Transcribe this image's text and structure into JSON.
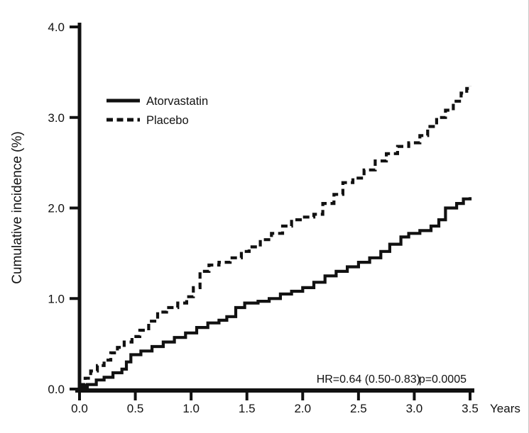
{
  "figure": {
    "background": "#ffffff"
  },
  "chart_data": {
    "type": "line",
    "subtype": "step-cumulative-incidence",
    "title": "",
    "xlabel": "Years",
    "ylabel": "Cumulative incidence (%)",
    "xlim": [
      0,
      3.5
    ],
    "ylim": [
      0,
      4.0
    ],
    "grid": false,
    "axis_color": "#111111",
    "x_ticks": [
      {
        "value": 0.0,
        "label": "0.0"
      },
      {
        "value": 0.5,
        "label": "0.5"
      },
      {
        "value": 1.0,
        "label": "1.0"
      },
      {
        "value": 1.5,
        "label": "1.5"
      },
      {
        "value": 2.0,
        "label": "2.0"
      },
      {
        "value": 2.5,
        "label": "2.5"
      },
      {
        "value": 3.0,
        "label": "3.0"
      },
      {
        "value": 3.5,
        "label": "3.5"
      }
    ],
    "y_ticks": [
      {
        "value": 0.0,
        "label": "0.0"
      },
      {
        "value": 1.0,
        "label": "1.0"
      },
      {
        "value": 2.0,
        "label": "2.0"
      },
      {
        "value": 3.0,
        "label": "3.0"
      },
      {
        "value": 4.0,
        "label": "4.0"
      }
    ],
    "annotation": {
      "hr": "HR=0.64 (0.50-0.83)",
      "p": "p=0.0005"
    },
    "legend": {
      "position": "upper-left-inside"
    },
    "series": [
      {
        "name": "Atorvastatin",
        "style": "solid",
        "color": "#111111",
        "points": [
          [
            0.0,
            0.02
          ],
          [
            0.07,
            0.05
          ],
          [
            0.15,
            0.1
          ],
          [
            0.22,
            0.13
          ],
          [
            0.3,
            0.18
          ],
          [
            0.38,
            0.22
          ],
          [
            0.42,
            0.3
          ],
          [
            0.46,
            0.38
          ],
          [
            0.55,
            0.42
          ],
          [
            0.65,
            0.47
          ],
          [
            0.75,
            0.52
          ],
          [
            0.85,
            0.57
          ],
          [
            0.95,
            0.62
          ],
          [
            1.05,
            0.68
          ],
          [
            1.15,
            0.73
          ],
          [
            1.25,
            0.76
          ],
          [
            1.32,
            0.8
          ],
          [
            1.4,
            0.9
          ],
          [
            1.48,
            0.95
          ],
          [
            1.6,
            0.97
          ],
          [
            1.7,
            1.0
          ],
          [
            1.8,
            1.05
          ],
          [
            1.9,
            1.08
          ],
          [
            2.0,
            1.12
          ],
          [
            2.1,
            1.18
          ],
          [
            2.2,
            1.25
          ],
          [
            2.3,
            1.3
          ],
          [
            2.4,
            1.35
          ],
          [
            2.5,
            1.4
          ],
          [
            2.6,
            1.45
          ],
          [
            2.7,
            1.52
          ],
          [
            2.78,
            1.6
          ],
          [
            2.88,
            1.68
          ],
          [
            2.95,
            1.72
          ],
          [
            3.05,
            1.75
          ],
          [
            3.15,
            1.8
          ],
          [
            3.22,
            1.87
          ],
          [
            3.28,
            2.0
          ],
          [
            3.38,
            2.05
          ],
          [
            3.44,
            2.1
          ],
          [
            3.5,
            2.12
          ]
        ]
      },
      {
        "name": "Placebo",
        "style": "dashed",
        "color": "#111111",
        "points": [
          [
            0.0,
            0.05
          ],
          [
            0.05,
            0.12
          ],
          [
            0.1,
            0.2
          ],
          [
            0.16,
            0.26
          ],
          [
            0.22,
            0.32
          ],
          [
            0.28,
            0.4
          ],
          [
            0.34,
            0.46
          ],
          [
            0.4,
            0.52
          ],
          [
            0.47,
            0.58
          ],
          [
            0.54,
            0.65
          ],
          [
            0.62,
            0.75
          ],
          [
            0.7,
            0.85
          ],
          [
            0.78,
            0.9
          ],
          [
            0.88,
            0.95
          ],
          [
            0.96,
            1.02
          ],
          [
            1.02,
            1.12
          ],
          [
            1.08,
            1.3
          ],
          [
            1.16,
            1.37
          ],
          [
            1.25,
            1.4
          ],
          [
            1.35,
            1.45
          ],
          [
            1.45,
            1.52
          ],
          [
            1.52,
            1.57
          ],
          [
            1.62,
            1.65
          ],
          [
            1.72,
            1.72
          ],
          [
            1.82,
            1.8
          ],
          [
            1.9,
            1.87
          ],
          [
            2.0,
            1.9
          ],
          [
            2.1,
            1.93
          ],
          [
            2.18,
            2.05
          ],
          [
            2.28,
            2.15
          ],
          [
            2.36,
            2.28
          ],
          [
            2.45,
            2.33
          ],
          [
            2.55,
            2.42
          ],
          [
            2.65,
            2.52
          ],
          [
            2.75,
            2.6
          ],
          [
            2.85,
            2.68
          ],
          [
            2.95,
            2.72
          ],
          [
            3.05,
            2.8
          ],
          [
            3.12,
            2.9
          ],
          [
            3.2,
            3.0
          ],
          [
            3.28,
            3.08
          ],
          [
            3.35,
            3.18
          ],
          [
            3.42,
            3.27
          ],
          [
            3.47,
            3.32
          ],
          [
            3.5,
            3.35
          ]
        ]
      }
    ]
  }
}
